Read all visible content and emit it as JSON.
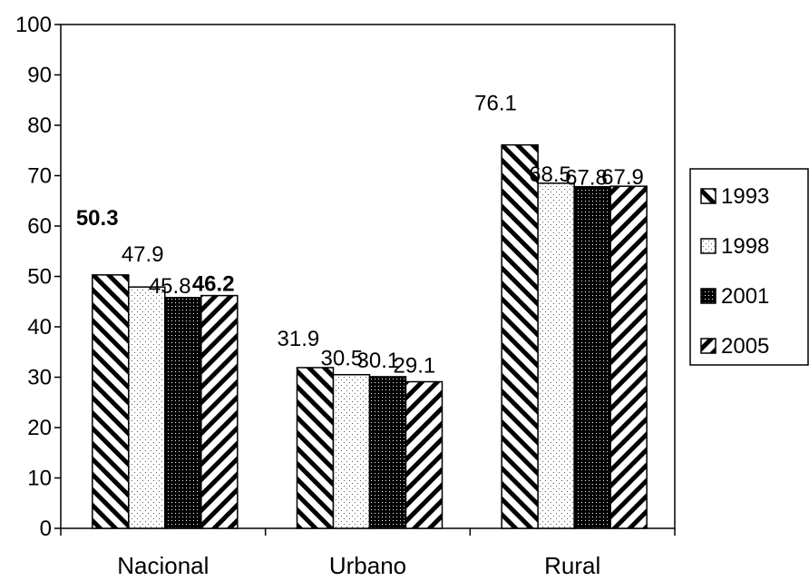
{
  "chart_data": {
    "type": "bar",
    "categories": [
      "Nacional",
      "Urbano",
      "Rural"
    ],
    "series": [
      {
        "name": "1993",
        "values": [
          50.3,
          31.9,
          76.1
        ],
        "pattern": "diag-back"
      },
      {
        "name": "1998",
        "values": [
          47.9,
          30.5,
          68.5
        ],
        "pattern": "dots"
      },
      {
        "name": "2001",
        "values": [
          45.8,
          30.1,
          67.8
        ],
        "pattern": "dense-dots"
      },
      {
        "name": "2005",
        "values": [
          46.2,
          29.1,
          67.9
        ],
        "pattern": "diag-fwd"
      }
    ],
    "data_labels": [
      [
        "50.3",
        "47.9",
        "45.8",
        "46.2"
      ],
      [
        "31.9",
        "30.5",
        "30.1",
        "29.1"
      ],
      [
        "76.1",
        "68.5",
        "67.8",
        "67.9"
      ]
    ],
    "bold_labels": [
      [
        true,
        false,
        false,
        true
      ],
      [
        false,
        false,
        false,
        false
      ],
      [
        false,
        false,
        false,
        false
      ]
    ],
    "ylim": [
      0,
      100
    ],
    "y_ticks": [
      "0",
      "10",
      "20",
      "30",
      "40",
      "50",
      "60",
      "70",
      "80",
      "90",
      "100"
    ],
    "title": "",
    "xlabel": "",
    "ylabel": "",
    "grid": false,
    "legend_position": "right"
  }
}
